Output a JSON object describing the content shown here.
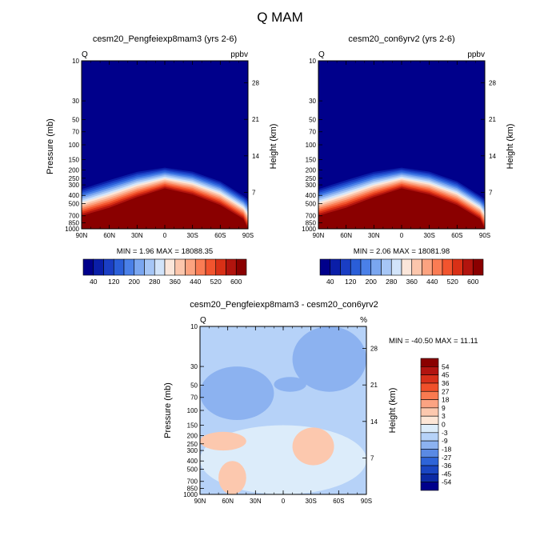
{
  "figure": {
    "title": "Q MAM"
  },
  "chart_data": [
    {
      "type": "heatmap",
      "title": "cesm20_Pengfeiexp8mam3 (yrs 2-6)",
      "variable": "Q",
      "units": "ppbv",
      "xlabel": "",
      "ylabel": "Pressure (mb)",
      "ylabel_right": "Height (km)",
      "x_ticks": [
        "90N",
        "60N",
        "30N",
        "0",
        "30S",
        "60S",
        "90S"
      ],
      "y_ticks": [
        "10",
        "30",
        "50",
        "70",
        "100",
        "150",
        "200",
        "250",
        "300",
        "400",
        "500",
        "700",
        "850",
        "1000"
      ],
      "y_ticks_right": [
        "28",
        "21",
        "14",
        "7"
      ],
      "y_scale": "log",
      "ylim": [
        1000,
        10
      ],
      "xlim": [
        "90N",
        "90S"
      ],
      "stats_text": "MIN =    1.96  MAX = 18088.35",
      "min": 1.96,
      "max": 18088.35,
      "colorbar": {
        "labels": [
          "40",
          "120",
          "200",
          "280",
          "360",
          "440",
          "520",
          "600"
        ],
        "levels": [
          40,
          80,
          120,
          160,
          200,
          240,
          280,
          320,
          360,
          400,
          440,
          480,
          520,
          560,
          600,
          640
        ],
        "colors": [
          "#00008b",
          "#0a1ea8",
          "#1a3ec4",
          "#2a5ed8",
          "#4a80e8",
          "#7aa6f0",
          "#a6c6f6",
          "#d2e4fa",
          "#fbe6da",
          "#fcc6ac",
          "#fca380",
          "#fa7c54",
          "#f2542e",
          "#d93016",
          "#b2140e",
          "#8a0000"
        ]
      },
      "tropopause_hpa": [
        {
          "lat": 90,
          "p": 320
        },
        {
          "lat": 60,
          "p": 250
        },
        {
          "lat": 30,
          "p": 200
        },
        {
          "lat": 0,
          "p": 180
        },
        {
          "lat": -30,
          "p": 200
        },
        {
          "lat": -60,
          "p": 260
        },
        {
          "lat": -90,
          "p": 420
        }
      ],
      "saturation_top_hpa": [
        {
          "lat": 90,
          "p": 700
        },
        {
          "lat": 60,
          "p": 560
        },
        {
          "lat": 30,
          "p": 420
        },
        {
          "lat": 0,
          "p": 330
        },
        {
          "lat": -30,
          "p": 390
        },
        {
          "lat": -60,
          "p": 520
        },
        {
          "lat": -85,
          "p": 760
        },
        {
          "lat": -90,
          "p": 1000
        }
      ]
    },
    {
      "type": "heatmap",
      "title": "cesm20_con6yrv2 (yrs 2-6)",
      "variable": "Q",
      "units": "ppbv",
      "xlabel": "",
      "ylabel": "Pressure (mb)",
      "ylabel_right": "Height (km)",
      "x_ticks": [
        "90N",
        "60N",
        "30N",
        "0",
        "30S",
        "60S",
        "90S"
      ],
      "y_ticks": [
        "10",
        "30",
        "50",
        "70",
        "100",
        "150",
        "200",
        "250",
        "300",
        "400",
        "500",
        "700",
        "850",
        "1000"
      ],
      "y_ticks_right": [
        "28",
        "21",
        "14",
        "7"
      ],
      "y_scale": "log",
      "ylim": [
        1000,
        10
      ],
      "xlim": [
        "90N",
        "90S"
      ],
      "stats_text": "MIN =    2.06  MAX = 18081.98",
      "min": 2.06,
      "max": 18081.98,
      "colorbar": {
        "labels": [
          "40",
          "120",
          "200",
          "280",
          "360",
          "440",
          "520",
          "600"
        ],
        "levels": [
          40,
          80,
          120,
          160,
          200,
          240,
          280,
          320,
          360,
          400,
          440,
          480,
          520,
          560,
          600,
          640
        ],
        "colors": [
          "#00008b",
          "#0a1ea8",
          "#1a3ec4",
          "#2a5ed8",
          "#4a80e8",
          "#7aa6f0",
          "#a6c6f6",
          "#d2e4fa",
          "#fbe6da",
          "#fcc6ac",
          "#fca380",
          "#fa7c54",
          "#f2542e",
          "#d93016",
          "#b2140e",
          "#8a0000"
        ]
      },
      "tropopause_hpa": [
        {
          "lat": 90,
          "p": 320
        },
        {
          "lat": 60,
          "p": 250
        },
        {
          "lat": 30,
          "p": 200
        },
        {
          "lat": 0,
          "p": 180
        },
        {
          "lat": -30,
          "p": 200
        },
        {
          "lat": -60,
          "p": 260
        },
        {
          "lat": -90,
          "p": 420
        }
      ],
      "saturation_top_hpa": [
        {
          "lat": 90,
          "p": 700
        },
        {
          "lat": 60,
          "p": 560
        },
        {
          "lat": 30,
          "p": 420
        },
        {
          "lat": 0,
          "p": 330
        },
        {
          "lat": -30,
          "p": 390
        },
        {
          "lat": -60,
          "p": 520
        },
        {
          "lat": -85,
          "p": 760
        },
        {
          "lat": -90,
          "p": 1000
        }
      ]
    },
    {
      "type": "heatmap",
      "title": "cesm20_Pengfeiexp8mam3 - cesm20_con6yrv2",
      "variable": "Q",
      "units": "%",
      "xlabel": "",
      "ylabel": "Pressure (mb)",
      "ylabel_right": "Height (km)",
      "x_ticks": [
        "90N",
        "60N",
        "30N",
        "0",
        "30S",
        "60S",
        "90S"
      ],
      "y_ticks": [
        "10",
        "30",
        "50",
        "70",
        "100",
        "150",
        "200",
        "250",
        "300",
        "400",
        "500",
        "700",
        "850",
        "1000"
      ],
      "y_ticks_right": [
        "28",
        "21",
        "14",
        "7"
      ],
      "y_scale": "log",
      "ylim": [
        1000,
        10
      ],
      "xlim": [
        "90N",
        "90S"
      ],
      "stats_text": "MIN = -40.50  MAX =  11.11",
      "min": -40.5,
      "max": 11.11,
      "colorbar": {
        "labels": [
          "54",
          "45",
          "36",
          "27",
          "18",
          "9",
          "3",
          "0",
          "-3",
          "-9",
          "-18",
          "-27",
          "-36",
          "-45",
          "-54"
        ],
        "colors": [
          "#8a0000",
          "#b21410",
          "#d7301a",
          "#f0502a",
          "#fa7a50",
          "#fca382",
          "#fcc8ae",
          "#fde6d6",
          "#dcecfa",
          "#b6d2f8",
          "#8cb2f0",
          "#5a8ae4",
          "#2e64d8",
          "#1a46c2",
          "#0c2aa4",
          "#00008b"
        ]
      },
      "regions": [
        {
          "value": -6,
          "lat_range": [
            90,
            -90
          ],
          "p_range": [
            10,
            1000
          ]
        },
        {
          "value": -12,
          "lat_range": [
            -10,
            -90
          ],
          "p_range": [
            10,
            60
          ]
        },
        {
          "value": -12,
          "lat_range": [
            90,
            10
          ],
          "p_range": [
            30,
            130
          ]
        },
        {
          "value": -18,
          "lat_range": [
            10,
            -25
          ],
          "p_range": [
            40,
            60
          ]
        },
        {
          "value": -3,
          "lat_range": [
            90,
            -90
          ],
          "p_range": [
            150,
            1000
          ]
        },
        {
          "value": 3,
          "lat_range": [
            -10,
            -55
          ],
          "p_range": [
            160,
            450
          ]
        },
        {
          "value": 3,
          "lat_range": [
            90,
            40
          ],
          "p_range": [
            180,
            300
          ]
        },
        {
          "value": 3,
          "lat_range": [
            70,
            40
          ],
          "p_range": [
            400,
            1000
          ]
        }
      ]
    }
  ]
}
